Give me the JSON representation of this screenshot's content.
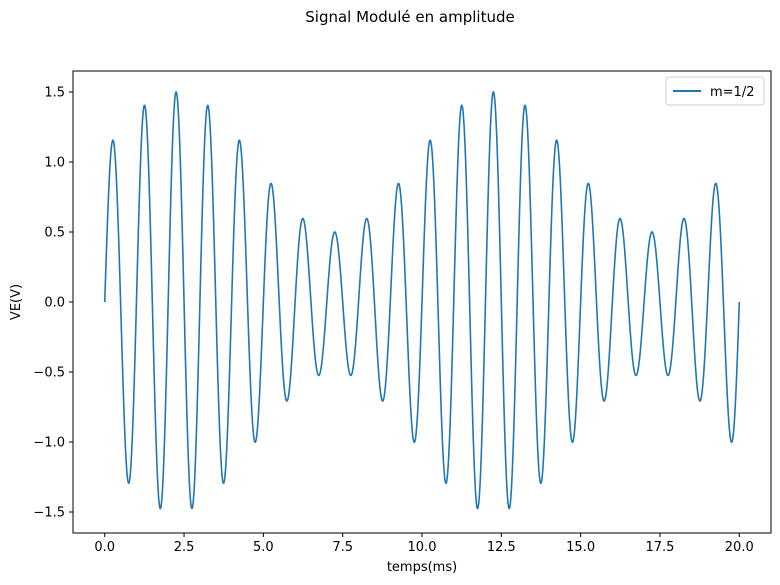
{
  "chart_data": {
    "type": "line",
    "title": "Signal Modulé en amplitude",
    "xlabel": "temps(ms)",
    "ylabel": "VE(V)",
    "xlim": [
      -1.0,
      21.0
    ],
    "ylim": [
      -1.65,
      1.65
    ],
    "x_ticks": [
      0.0,
      2.5,
      5.0,
      7.5,
      10.0,
      12.5,
      15.0,
      17.5,
      20.0
    ],
    "x_tick_labels": [
      "0.0",
      "2.5",
      "5.0",
      "7.5",
      "10.0",
      "12.5",
      "15.0",
      "17.5",
      "20.0"
    ],
    "y_ticks": [
      -1.5,
      -1.0,
      -0.5,
      0.0,
      0.5,
      1.0,
      1.5
    ],
    "y_tick_labels": [
      "−1.5",
      "−1.0",
      "−0.5",
      "0.0",
      "0.5",
      "1.0",
      "1.5"
    ],
    "grid": false,
    "legend_position": "top-right",
    "series": [
      {
        "name": "m=1/2",
        "color": "#1f77b4",
        "x_range": [
          0,
          20
        ],
        "model": "A(t)·sin(2π·f·t)",
        "carrier_frequency_khz": 1.0,
        "envelope_maxima": [
          {
            "x": 2.25,
            "y": 1.5
          },
          {
            "x": 12.25,
            "y": 1.5
          }
        ],
        "envelope_minima": [
          {
            "x": 7.25,
            "y": 0.5
          },
          {
            "x": 17.25,
            "y": 0.5
          }
        ],
        "peaks": [
          {
            "x": 0.25,
            "y": 1.08
          },
          {
            "x": 1.25,
            "y": 1.35
          },
          {
            "x": 2.25,
            "y": 1.5
          },
          {
            "x": 3.25,
            "y": 1.45
          },
          {
            "x": 4.25,
            "y": 1.23
          },
          {
            "x": 5.25,
            "y": 0.92
          },
          {
            "x": 6.25,
            "y": 0.65
          },
          {
            "x": 7.25,
            "y": 0.5
          },
          {
            "x": 8.25,
            "y": 0.55
          },
          {
            "x": 9.25,
            "y": 0.77
          },
          {
            "x": 10.25,
            "y": 1.08
          },
          {
            "x": 11.25,
            "y": 1.35
          },
          {
            "x": 12.25,
            "y": 1.5
          },
          {
            "x": 13.25,
            "y": 1.45
          },
          {
            "x": 14.25,
            "y": 1.23
          },
          {
            "x": 15.25,
            "y": 0.92
          },
          {
            "x": 16.25,
            "y": 0.65
          },
          {
            "x": 17.25,
            "y": 0.5
          },
          {
            "x": 18.25,
            "y": 0.55
          },
          {
            "x": 19.25,
            "y": 0.77
          }
        ],
        "troughs": [
          {
            "x": 0.75,
            "y": -1.22
          },
          {
            "x": 1.75,
            "y": -1.44
          },
          {
            "x": 2.75,
            "y": -1.49
          },
          {
            "x": 3.75,
            "y": -1.35
          },
          {
            "x": 4.75,
            "y": -1.08
          },
          {
            "x": 5.75,
            "y": -0.77
          },
          {
            "x": 6.75,
            "y": -0.55
          },
          {
            "x": 7.75,
            "y": -0.5
          },
          {
            "x": 8.75,
            "y": -0.65
          },
          {
            "x": 9.75,
            "y": -0.92
          },
          {
            "x": 10.75,
            "y": -1.22
          },
          {
            "x": 11.75,
            "y": -1.44
          },
          {
            "x": 12.75,
            "y": -1.49
          },
          {
            "x": 13.75,
            "y": -1.35
          },
          {
            "x": 14.75,
            "y": -1.08
          },
          {
            "x": 15.75,
            "y": -0.77
          },
          {
            "x": 16.75,
            "y": -0.55
          },
          {
            "x": 17.75,
            "y": -0.5
          },
          {
            "x": 18.75,
            "y": -0.65
          },
          {
            "x": 19.75,
            "y": -0.92
          }
        ]
      }
    ]
  }
}
